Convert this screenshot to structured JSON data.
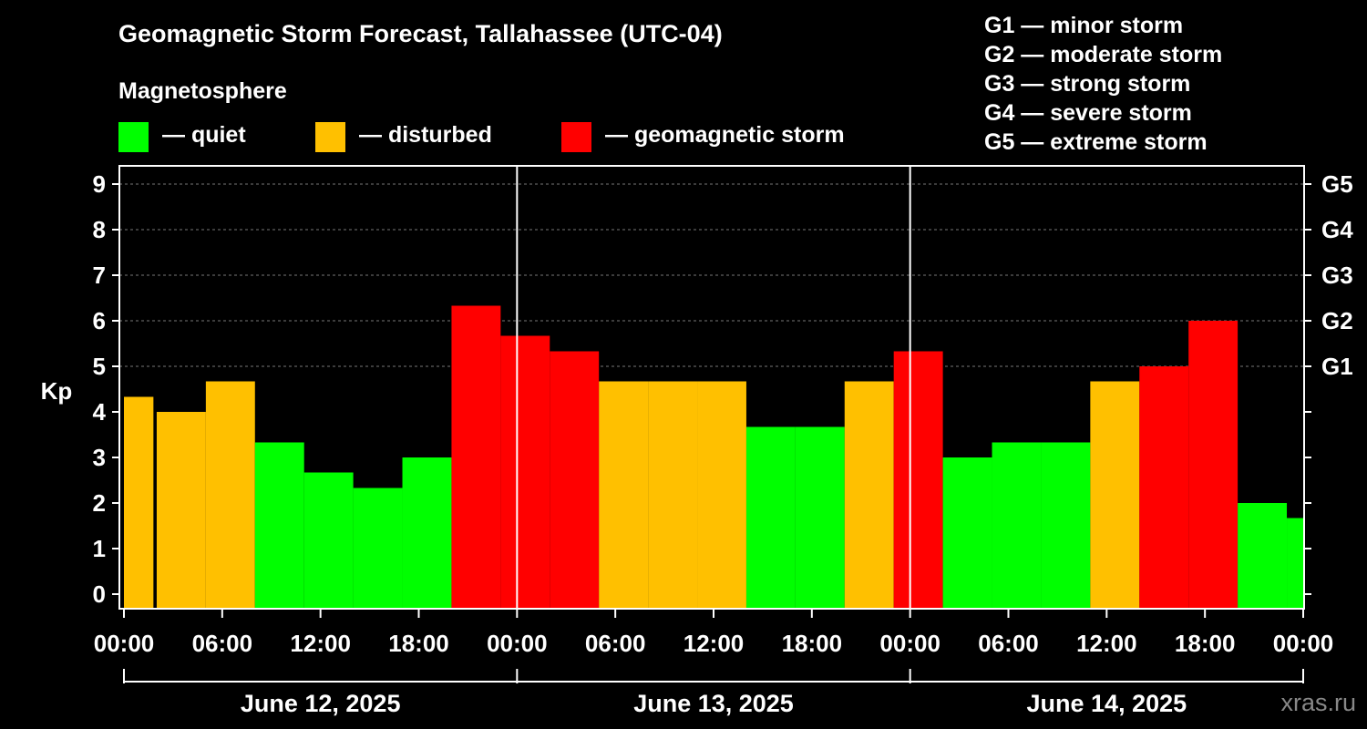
{
  "title": "Geomagnetic Storm Forecast, Tallahassee (UTC-04)",
  "legend": {
    "heading": "Magnetosphere",
    "items": [
      {
        "label": "— quiet",
        "color": "#00ff00"
      },
      {
        "label": "— disturbed",
        "color": "#ffc000"
      },
      {
        "label": "— geomagnetic storm",
        "color": "#ff0000"
      }
    ]
  },
  "g_levels": [
    "G1 — minor storm",
    "G2 — moderate storm",
    "G3 — strong storm",
    "G4 — severe storm",
    "G5 — extreme storm"
  ],
  "watermark": "xras.ru",
  "chart_data": {
    "type": "bar",
    "ylabel": "Kp",
    "ylim": [
      0,
      9
    ],
    "yticks": [
      0,
      1,
      2,
      3,
      4,
      5,
      6,
      7,
      8,
      9
    ],
    "right_axis_labels": [
      {
        "value": 5,
        "label": "G1"
      },
      {
        "value": 6,
        "label": "G2"
      },
      {
        "value": 7,
        "label": "G3"
      },
      {
        "value": 8,
        "label": "G4"
      },
      {
        "value": 9,
        "label": "G5"
      }
    ],
    "x_hours_range": [
      0,
      72
    ],
    "x_tick_labels": [
      "00:00",
      "06:00",
      "12:00",
      "18:00",
      "00:00",
      "06:00",
      "12:00",
      "18:00",
      "00:00",
      "06:00",
      "12:00",
      "18:00",
      "00:00"
    ],
    "x_tick_hours": [
      0,
      6,
      12,
      18,
      24,
      30,
      36,
      42,
      48,
      54,
      60,
      66,
      72
    ],
    "day_separators_hours": [
      24,
      48
    ],
    "dates": [
      "June 12, 2025",
      "June 13, 2025",
      "June 14, 2025"
    ],
    "bars": [
      {
        "start": 0,
        "end": 1.8,
        "kp": 4.33,
        "level": "disturbed"
      },
      {
        "start": 2,
        "end": 5,
        "kp": 4.0,
        "level": "disturbed"
      },
      {
        "start": 5,
        "end": 8,
        "kp": 4.67,
        "level": "disturbed"
      },
      {
        "start": 8,
        "end": 11,
        "kp": 3.33,
        "level": "quiet"
      },
      {
        "start": 11,
        "end": 14,
        "kp": 2.67,
        "level": "quiet"
      },
      {
        "start": 14,
        "end": 17,
        "kp": 2.33,
        "level": "quiet"
      },
      {
        "start": 17,
        "end": 20,
        "kp": 3.0,
        "level": "quiet"
      },
      {
        "start": 20,
        "end": 23,
        "kp": 6.33,
        "level": "storm"
      },
      {
        "start": 23,
        "end": 26,
        "kp": 5.67,
        "level": "storm"
      },
      {
        "start": 26,
        "end": 29,
        "kp": 5.33,
        "level": "storm"
      },
      {
        "start": 29,
        "end": 32,
        "kp": 4.67,
        "level": "disturbed"
      },
      {
        "start": 32,
        "end": 35,
        "kp": 4.67,
        "level": "disturbed"
      },
      {
        "start": 35,
        "end": 38,
        "kp": 4.67,
        "level": "disturbed"
      },
      {
        "start": 38,
        "end": 41,
        "kp": 3.67,
        "level": "quiet"
      },
      {
        "start": 41,
        "end": 44,
        "kp": 3.67,
        "level": "quiet"
      },
      {
        "start": 44,
        "end": 47,
        "kp": 4.67,
        "level": "disturbed"
      },
      {
        "start": 47,
        "end": 50,
        "kp": 5.33,
        "level": "storm"
      },
      {
        "start": 50,
        "end": 53,
        "kp": 3.0,
        "level": "quiet"
      },
      {
        "start": 53,
        "end": 56,
        "kp": 3.33,
        "level": "quiet"
      },
      {
        "start": 56,
        "end": 59,
        "kp": 3.33,
        "level": "quiet"
      },
      {
        "start": 59,
        "end": 62,
        "kp": 4.67,
        "level": "disturbed"
      },
      {
        "start": 62,
        "end": 65,
        "kp": 5.0,
        "level": "storm"
      },
      {
        "start": 65,
        "end": 68,
        "kp": 6.0,
        "level": "storm"
      },
      {
        "start": 68,
        "end": 71,
        "kp": 2.0,
        "level": "quiet"
      },
      {
        "start": 71,
        "end": 72,
        "kp": 1.67,
        "level": "quiet"
      }
    ],
    "level_colors": {
      "quiet": "#00ff00",
      "disturbed": "#ffc000",
      "storm": "#ff0000"
    }
  }
}
